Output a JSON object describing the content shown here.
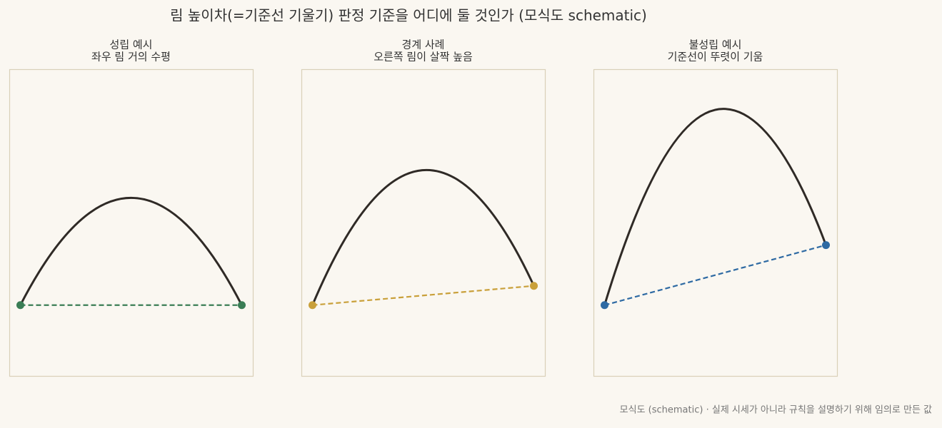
{
  "title": "림 높이차(=기준선 기울기) 판정 기준을 어디에 둘 것인가 (모식도 schematic)",
  "footnote": "모식도 (schematic) · 실제 시세가 아니라 규칙을 설명하기 위해 임의로 만든 값",
  "chart_data": [
    {
      "type": "line",
      "title": "성립 예시",
      "subtitle": "좌우 림 거의 수평",
      "x": [
        0,
        0.5,
        1
      ],
      "values": [
        0,
        0.5,
        0
      ],
      "color": "#2f2a26",
      "baseline_color": "#3a7d55",
      "xlim": [
        -0.05,
        1.05
      ],
      "ylim": [
        -0.33,
        1.1
      ]
    },
    {
      "type": "line",
      "title": "경계 사례",
      "subtitle": "오른쪽 림이 살짝 높음",
      "x": [
        0,
        0.515,
        1
      ],
      "values": [
        0,
        0.63,
        0.09
      ],
      "color": "#2f2a26",
      "baseline_color": "#c9a03a",
      "xlim": [
        -0.05,
        1.05
      ],
      "ylim": [
        -0.33,
        1.1
      ]
    },
    {
      "type": "line",
      "title": "불성립 예시",
      "subtitle": "기준선이 뚜렷이 기움",
      "x": [
        0,
        0.537,
        1
      ],
      "values": [
        0,
        0.915,
        0.28
      ],
      "color": "#2f2a26",
      "baseline_color": "#2e6aa3",
      "xlim": [
        -0.05,
        1.05
      ],
      "ylim": [
        -0.33,
        1.1
      ]
    }
  ]
}
